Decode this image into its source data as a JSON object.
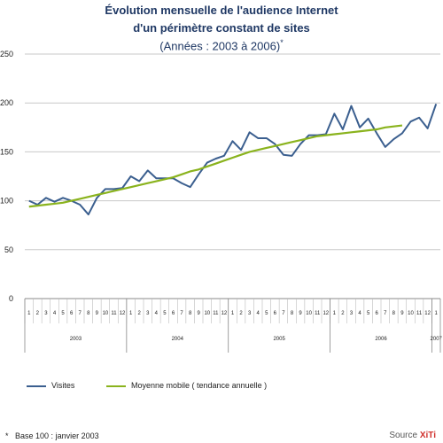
{
  "chart_data": {
    "type": "line",
    "title_line1": "Évolution mensuelle de l'audience Internet",
    "title_line2": "d'un périmètre constant de sites",
    "subtitle": "(Années : 2003 à 2006)",
    "subtitle_mark": "*",
    "ylim": [
      0,
      250
    ],
    "yticks": [
      "0",
      "50",
      "100",
      "150",
      "200",
      "250"
    ],
    "years": [
      {
        "label": "2003",
        "months": [
          "1",
          "2",
          "3",
          "4",
          "5",
          "6",
          "7",
          "8",
          "9",
          "10",
          "11",
          "12"
        ]
      },
      {
        "label": "2004",
        "months": [
          "1",
          "2",
          "3",
          "4",
          "5",
          "6",
          "7",
          "8",
          "9",
          "10",
          "11",
          "12"
        ]
      },
      {
        "label": "2005",
        "months": [
          "1",
          "2",
          "3",
          "4",
          "5",
          "6",
          "7",
          "8",
          "9",
          "10",
          "11",
          "12"
        ]
      },
      {
        "label": "2006",
        "months": [
          "1",
          "2",
          "3",
          "4",
          "5",
          "6",
          "7",
          "8",
          "9",
          "10",
          "11",
          "12"
        ]
      },
      {
        "label": "2007",
        "months": [
          "1"
        ]
      }
    ],
    "series": [
      {
        "name": "Visites",
        "color": "#3b5f8f",
        "values": [
          100,
          96,
          103,
          99,
          103,
          100,
          96,
          86,
          103,
          112,
          112,
          113,
          125,
          120,
          131,
          123,
          123,
          123,
          118,
          114,
          127,
          139,
          143,
          146,
          161,
          152,
          170,
          164,
          164,
          158,
          147,
          146,
          158,
          167,
          167,
          168,
          189,
          173,
          197,
          175,
          184,
          169,
          155,
          163,
          169,
          181,
          185,
          174,
          199
        ]
      },
      {
        "name": "Moyenne mobile ( tendance annuelle )",
        "color": "#8ab31d",
        "values": [
          94,
          95,
          96,
          97,
          98,
          100,
          102,
          104,
          106,
          108,
          110,
          112,
          114,
          116,
          118,
          120,
          122,
          124,
          127,
          130,
          132,
          135,
          138,
          141,
          144,
          147,
          150,
          152,
          154,
          156,
          158,
          160,
          162,
          164,
          166,
          167,
          168,
          169,
          170,
          171,
          172,
          173,
          175,
          176,
          177
        ]
      }
    ],
    "grid": true,
    "legend_position": "bottom"
  },
  "footnote": "Base 100 : janvier 2003",
  "footnote_mark": "*",
  "source_label": "Source",
  "source_brand": "XiTi"
}
